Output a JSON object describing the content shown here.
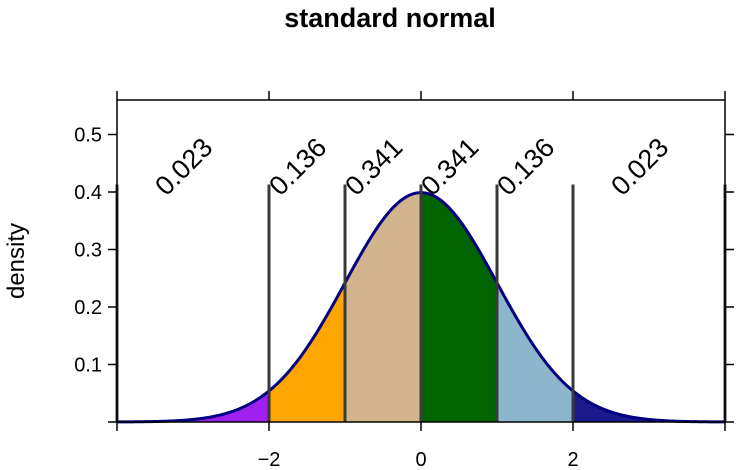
{
  "chart_data": {
    "type": "area",
    "title": "standard normal",
    "xlabel": "",
    "ylabel": "density",
    "xlim": [
      -4,
      4
    ],
    "ylim": [
      0,
      0.56
    ],
    "x_ticks": [
      -2,
      0,
      2
    ],
    "x_tick_labels": [
      "−2",
      "0",
      "2"
    ],
    "y_ticks": [
      0.1,
      0.2,
      0.3,
      0.4,
      0.5
    ],
    "y_tick_labels": [
      "0.1",
      "0.2",
      "0.3",
      "0.4",
      "0.5"
    ],
    "grid": false,
    "legend": "none",
    "curve": {
      "distribution": "normal",
      "mean": 0,
      "sd": 1,
      "color": "#000080"
    },
    "cutpoints": [
      -4,
      -2,
      -1,
      0,
      1,
      2,
      4
    ],
    "cutline_height": 0.413,
    "regions": [
      {
        "from": -4,
        "to": -2,
        "probability_label": "0.023",
        "color": "#a020f0"
      },
      {
        "from": -2,
        "to": -1,
        "probability_label": "0.136",
        "color": "#ffa500"
      },
      {
        "from": -1,
        "to": 0,
        "probability_label": "0.341",
        "color": "#d2b48c"
      },
      {
        "from": 0,
        "to": 1,
        "probability_label": "0.341",
        "color": "#006400"
      },
      {
        "from": 1,
        "to": 2,
        "probability_label": "0.136",
        "color": "#8db6cd"
      },
      {
        "from": 2,
        "to": 4,
        "probability_label": "0.023",
        "color": "#191a8c"
      }
    ]
  }
}
